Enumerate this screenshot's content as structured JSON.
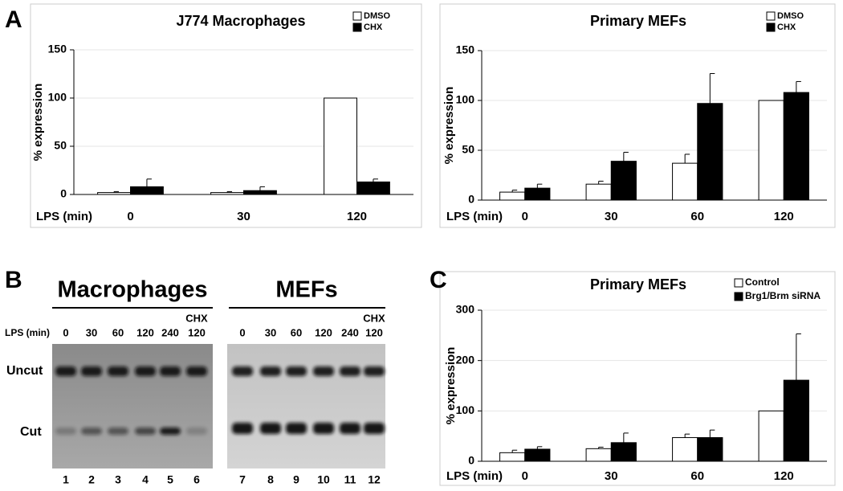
{
  "panel_labels": [
    "A",
    "B",
    "C"
  ],
  "chart_data": [
    {
      "type": "bar",
      "title": "J774 Macrophages",
      "xlabel": "LPS (min)",
      "ylabel": "% expression",
      "categories": [
        "0",
        "30",
        "120"
      ],
      "series": [
        {
          "name": "DMSO",
          "color": "#ffffff",
          "values": [
            2,
            2,
            100
          ],
          "errors": [
            1,
            1,
            null
          ]
        },
        {
          "name": "CHX",
          "color": "#000000",
          "values": [
            8,
            4,
            13
          ],
          "errors": [
            8,
            4,
            3
          ]
        }
      ],
      "ylim": [
        0,
        150
      ],
      "yticks": [
        0,
        50,
        100,
        150
      ],
      "grid": true,
      "legend": "top-right"
    },
    {
      "type": "bar",
      "title": "Primary MEFs",
      "xlabel": "LPS (min)",
      "ylabel": "% expression",
      "categories": [
        "0",
        "30",
        "60",
        "120"
      ],
      "series": [
        {
          "name": "DMSO",
          "color": "#ffffff",
          "values": [
            8,
            16,
            37,
            100
          ],
          "errors": [
            2,
            3,
            9,
            null
          ]
        },
        {
          "name": "CHX",
          "color": "#000000",
          "values": [
            12,
            39,
            97,
            108
          ],
          "errors": [
            4,
            9,
            30,
            11
          ]
        }
      ],
      "ylim": [
        0,
        150
      ],
      "yticks": [
        0,
        50,
        100,
        150
      ],
      "grid": true,
      "legend": "top-right"
    },
    {
      "type": "bar",
      "title": "Primary MEFs",
      "xlabel": "LPS (min)",
      "ylabel": "% expression",
      "categories": [
        "0",
        "30",
        "60",
        "120"
      ],
      "series": [
        {
          "name": "Control",
          "color": "#ffffff",
          "values": [
            17,
            25,
            47,
            100
          ],
          "errors": [
            5,
            3,
            7,
            null
          ]
        },
        {
          "name": "Brg1/Brm siRNA",
          "color": "#000000",
          "values": [
            24,
            37,
            47,
            161
          ],
          "errors": [
            5,
            19,
            15,
            92
          ]
        }
      ],
      "ylim": [
        0,
        300
      ],
      "yticks": [
        0,
        100,
        200,
        300
      ],
      "grid": true,
      "legend": "top-right"
    }
  ],
  "gel": {
    "groups": [
      "Macrophages",
      "MEFs"
    ],
    "lps_label": "LPS (min)",
    "rows": [
      "Uncut",
      "Cut"
    ],
    "lanes": [
      {
        "time": "0",
        "number": "1"
      },
      {
        "time": "30",
        "number": "2"
      },
      {
        "time": "60",
        "number": "3"
      },
      {
        "time": "120",
        "number": "4"
      },
      {
        "time": "240",
        "number": "5"
      },
      {
        "treatment": "CHX",
        "time": "120",
        "number": "6"
      },
      {
        "time": "0",
        "number": "7"
      },
      {
        "time": "30",
        "number": "8"
      },
      {
        "time": "60",
        "number": "9"
      },
      {
        "time": "120",
        "number": "10"
      },
      {
        "time": "240",
        "number": "11"
      },
      {
        "treatment": "CHX",
        "time": "120",
        "number": "12"
      }
    ]
  }
}
